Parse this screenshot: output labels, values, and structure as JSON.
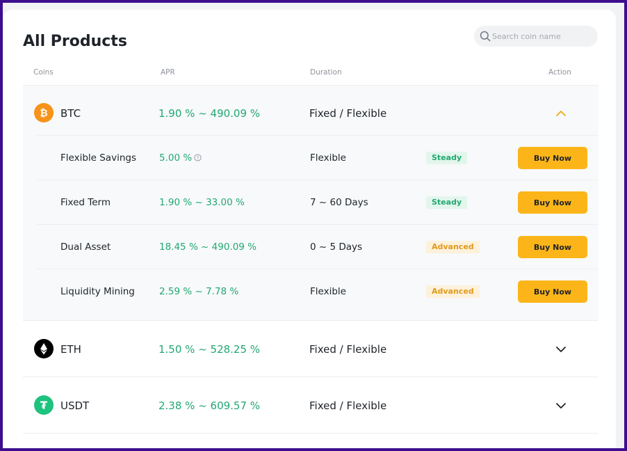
{
  "page": {
    "title": "All Products"
  },
  "search": {
    "placeholder": "Search coin name"
  },
  "table": {
    "headers": {
      "coins": "Coins",
      "apr": "APR",
      "duration": "Duration",
      "action": "Action"
    }
  },
  "coins": [
    {
      "symbol": "BTC",
      "apr": "1.90 % ~ 490.09 %",
      "duration": "Fixed / Flexible",
      "expanded": true,
      "icon": "bitcoin-icon",
      "color": "#f7931a",
      "products": [
        {
          "name": "Flexible Savings",
          "apr": "5.00 %",
          "duration": "Flexible",
          "risk": "Steady",
          "action": "Buy Now",
          "info_icon": "question-circle-icon"
        },
        {
          "name": "Fixed Term",
          "apr": "1.90 % ~ 33.00 %",
          "duration": "7 ~ 60 Days",
          "risk": "Steady",
          "action": "Buy Now"
        },
        {
          "name": "Dual Asset",
          "apr": "18.45 % ~ 490.09 %",
          "duration": "0 ~ 5 Days",
          "risk": "Advanced",
          "action": "Buy Now"
        },
        {
          "name": "Liquidity Mining",
          "apr": "2.59 % ~ 7.78 %",
          "duration": "Flexible",
          "risk": "Advanced",
          "action": "Buy Now"
        }
      ]
    },
    {
      "symbol": "ETH",
      "apr": "1.50 % ~ 528.25 %",
      "duration": "Fixed / Flexible",
      "expanded": false,
      "icon": "ethereum-icon",
      "color": "#000000"
    },
    {
      "symbol": "USDT",
      "apr": "2.38 % ~ 609.57 %",
      "duration": "Fixed / Flexible",
      "expanded": false,
      "icon": "tether-icon",
      "color": "#1fc27e"
    }
  ],
  "colors": {
    "frame": "#3d0f8f",
    "accent": "#fcb519",
    "positive": "#22a871",
    "steady_bg": "#e3f6ec",
    "advanced_bg": "#fdf1dc",
    "advanced_text": "#e09a1a"
  }
}
